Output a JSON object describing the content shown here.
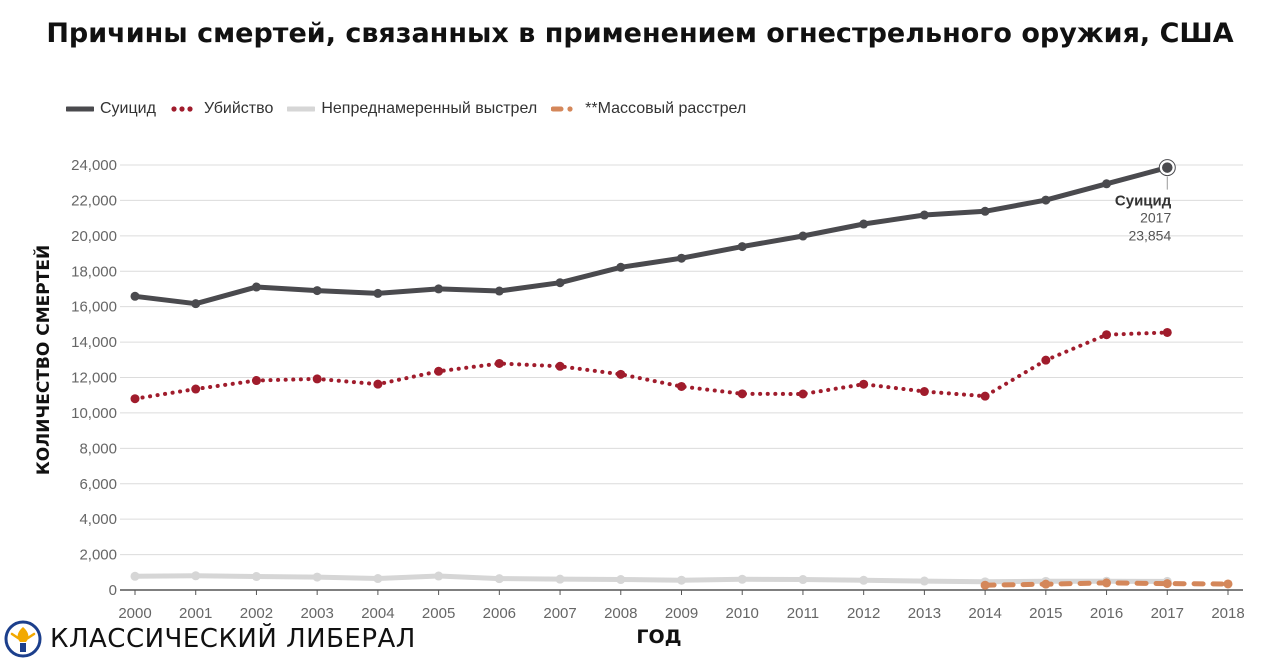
{
  "chart_data": {
    "type": "line",
    "title": "Причины смертей, связанных в применением огнестрельного оружия, США",
    "xlabel": "ГОД",
    "ylabel": "КОЛИЧЕСТВО СМЕРТЕЙ",
    "x": [
      2000,
      2001,
      2002,
      2003,
      2004,
      2005,
      2006,
      2007,
      2008,
      2009,
      2010,
      2011,
      2012,
      2013,
      2014,
      2015,
      2016,
      2017,
      2018
    ],
    "x_ticks": [
      "2000",
      "2001",
      "2002",
      "2003",
      "2004",
      "2005",
      "2006",
      "2007",
      "2008",
      "2009",
      "2010",
      "2011",
      "2012",
      "2013",
      "2014",
      "2015",
      "2016",
      "2017",
      "2018"
    ],
    "ylim": [
      0,
      24000
    ],
    "y_ticks": [
      "0",
      "2,000",
      "4,000",
      "6,000",
      "8,000",
      "10,000",
      "12,000",
      "14,000",
      "16,000",
      "18,000",
      "20,000",
      "22,000",
      "24,000"
    ],
    "grid": true,
    "legend_position": "top-left",
    "series": [
      {
        "name": "Суицид",
        "style": "solid-thick",
        "color": "#4a4a4e",
        "x": [
          2000,
          2001,
          2002,
          2003,
          2004,
          2005,
          2006,
          2007,
          2008,
          2009,
          2010,
          2011,
          2012,
          2013,
          2014,
          2015,
          2016,
          2017
        ],
        "values": [
          16586,
          16169,
          17108,
          16907,
          16750,
          17002,
          16883,
          17352,
          18223,
          18735,
          19392,
          19990,
          20666,
          21175,
          21386,
          22018,
          22938,
          23854
        ]
      },
      {
        "name": "Убийство",
        "style": "dotted",
        "color": "#a01c2c",
        "x": [
          2000,
          2001,
          2002,
          2003,
          2004,
          2005,
          2006,
          2007,
          2008,
          2009,
          2010,
          2011,
          2012,
          2013,
          2014,
          2015,
          2016,
          2017
        ],
        "values": [
          10801,
          11348,
          11829,
          11920,
          11624,
          12352,
          12791,
          12632,
          12179,
          11493,
          11078,
          11068,
          11622,
          11208,
          10945,
          12979,
          14415,
          14542
        ]
      },
      {
        "name": "Непреднамеренный выстрел",
        "style": "solid-light",
        "color": "#d6d6d6",
        "x": [
          2000,
          2001,
          2002,
          2003,
          2004,
          2005,
          2006,
          2007,
          2008,
          2009,
          2010,
          2011,
          2012,
          2013,
          2014,
          2015,
          2016,
          2017
        ],
        "values": [
          776,
          802,
          762,
          730,
          649,
          789,
          642,
          613,
          592,
          554,
          606,
          591,
          548,
          505,
          461,
          489,
          495,
          486
        ]
      },
      {
        "name": "**Массовый расстрел",
        "style": "dashed",
        "color": "#d4875a",
        "x": [
          2014,
          2015,
          2016,
          2017,
          2018
        ],
        "values": [
          270,
          330,
          400,
          360,
          340
        ]
      }
    ],
    "annotation": {
      "series": "Суицид",
      "label": "Суицид",
      "year": "2017",
      "value": "23,854"
    }
  },
  "branding": {
    "logo_text": "КЛАССИЧЕСКИЙ ЛИБЕРАЛ",
    "logo_icon": "liberty-torch-icon",
    "logo_color": "#f2a900",
    "logo_ring_color": "#1c3f8c"
  }
}
